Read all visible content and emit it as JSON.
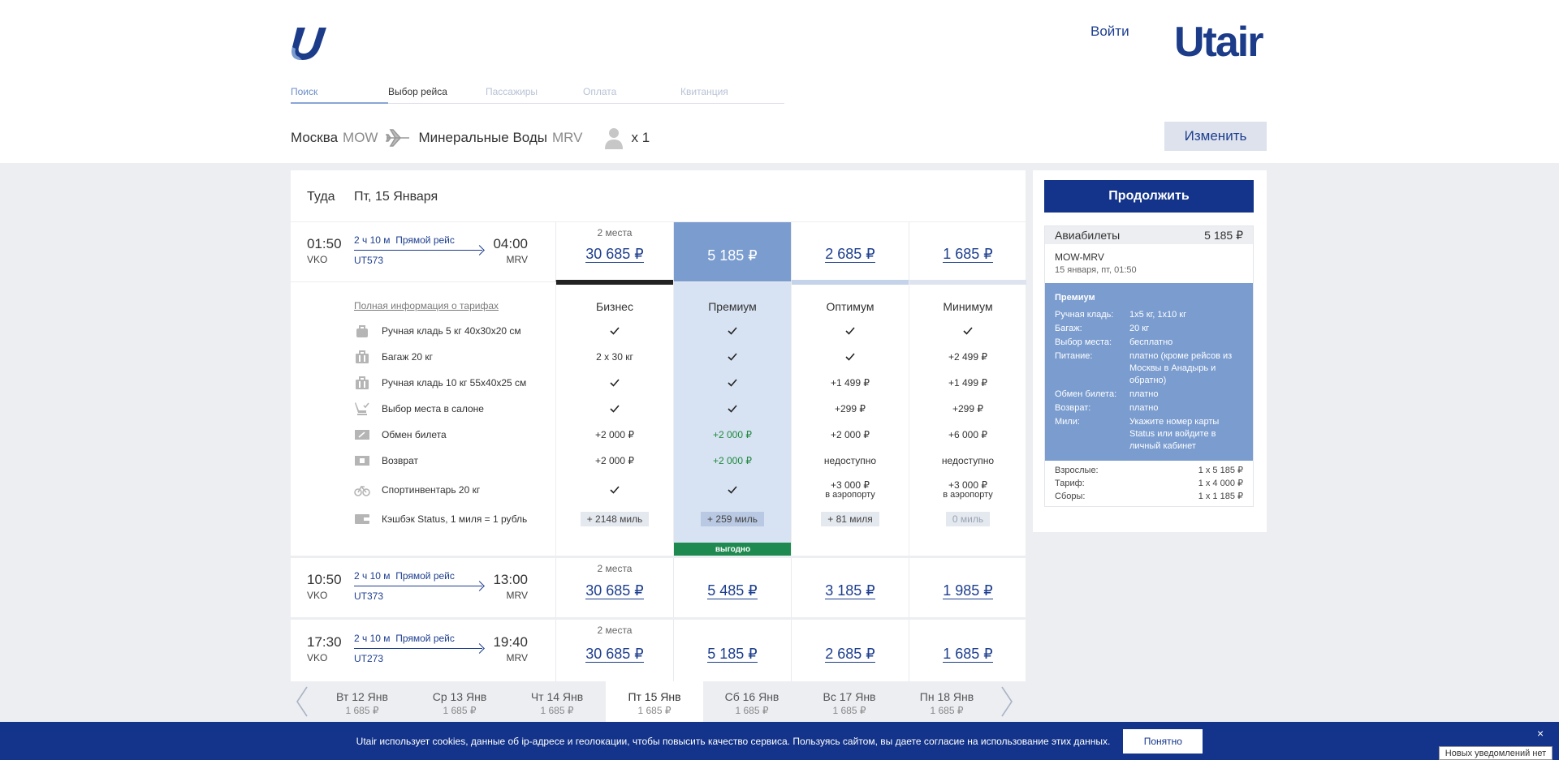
{
  "header": {
    "login": "Войти",
    "brand": "Utair",
    "steps": [
      "Поиск",
      "Выбор рейса",
      "Пассажиры",
      "Оплата",
      "Квитанция"
    ],
    "route": {
      "from_city": "Москва",
      "from_code": "MOW",
      "to_city": "Минеральные Воды",
      "to_code": "MRV",
      "passengers": "x 1"
    },
    "change_btn": "Изменить"
  },
  "direction": {
    "label": "Туда",
    "date": "Пт, 15 Января"
  },
  "flights": [
    {
      "dep_time": "01:50",
      "dep_ap": "VKO",
      "duration": "2 ч 10 м",
      "type": "Прямой рейс",
      "number": "UT573",
      "arr_time": "04:00",
      "arr_ap": "MRV",
      "prices": [
        {
          "seats": "2 места",
          "price": "30 685 ₽"
        },
        {
          "seats": "",
          "price": "5 185 ₽"
        },
        {
          "seats": "",
          "price": "2 685 ₽"
        },
        {
          "seats": "",
          "price": "1 685 ₽"
        }
      ]
    },
    {
      "dep_time": "10:50",
      "dep_ap": "VKO",
      "duration": "2 ч 10 м",
      "type": "Прямой рейс",
      "number": "UT373",
      "arr_time": "13:00",
      "arr_ap": "MRV",
      "prices": [
        {
          "seats": "2 места",
          "price": "30 685 ₽"
        },
        {
          "seats": "",
          "price": "5 485 ₽"
        },
        {
          "seats": "",
          "price": "3 185 ₽"
        },
        {
          "seats": "",
          "price": "1 985 ₽"
        }
      ]
    },
    {
      "dep_time": "17:30",
      "dep_ap": "VKO",
      "duration": "2 ч 10 м",
      "type": "Прямой рейс",
      "number": "UT273",
      "arr_time": "19:40",
      "arr_ap": "MRV",
      "prices": [
        {
          "seats": "2 места",
          "price": "30 685 ₽"
        },
        {
          "seats": "",
          "price": "5 185 ₽"
        },
        {
          "seats": "",
          "price": "2 685 ₽"
        },
        {
          "seats": "",
          "price": "1 685 ₽"
        }
      ]
    }
  ],
  "tariffs": {
    "full_info": "Полная информация о тарифах",
    "features": [
      {
        "icon": "hand-bag-icon",
        "label": "Ручная кладь 5 кг 40x30x20 см"
      },
      {
        "icon": "baggage-icon",
        "label": "Багаж 20 кг"
      },
      {
        "icon": "suitcase-icon",
        "label": "Ручная кладь 10 кг 55x40x25 см"
      },
      {
        "icon": "seat-icon",
        "label": "Выбор места в салоне"
      },
      {
        "icon": "ticket-exchange-icon",
        "label": "Обмен билета"
      },
      {
        "icon": "refund-icon",
        "label": "Возврат"
      },
      {
        "icon": "bicycle-icon",
        "label": "Спортинвентарь 20 кг"
      },
      {
        "icon": "wallet-icon",
        "label": "Кэшбэк Status, 1 миля = 1 рубль"
      }
    ],
    "columns": [
      {
        "name": "Бизнес",
        "values": [
          "✓",
          "2 x 30 кг",
          "✓",
          "✓",
          "+2 000 ₽",
          "+2 000 ₽",
          "✓"
        ],
        "sport_sub": "",
        "miles": "+ 2148 миль"
      },
      {
        "name": "Премиум",
        "values": [
          "✓",
          "✓",
          "✓",
          "✓",
          "+2 000 ₽",
          "+2 000 ₽",
          "✓"
        ],
        "sport_sub": "",
        "miles": "+ 259 миль",
        "badge": "выгодно"
      },
      {
        "name": "Оптимум",
        "values": [
          "✓",
          "✓",
          "+1 499 ₽",
          "+299 ₽",
          "+2 000 ₽",
          "недоступно",
          "+3 000 ₽"
        ],
        "sport_sub": "в аэропорту",
        "miles": "+ 81 миля"
      },
      {
        "name": "Минимум",
        "values": [
          "✓",
          "+2 499 ₽",
          "+1 499 ₽",
          "+299 ₽",
          "+6 000 ₽",
          "недоступно",
          "+3 000 ₽"
        ],
        "sport_sub": "в аэропорту",
        "miles": "0 миль"
      }
    ]
  },
  "dates": [
    {
      "label": "Вт 12 Янв",
      "price": "1 685 ₽"
    },
    {
      "label": "Ср 13 Янв",
      "price": "1 685 ₽"
    },
    {
      "label": "Чт 14 Янв",
      "price": "1 685 ₽"
    },
    {
      "label": "Пт 15 Янв",
      "price": "1 685 ₽"
    },
    {
      "label": "Сб 16 Янв",
      "price": "1 685 ₽"
    },
    {
      "label": "Вс 17 Янв",
      "price": "1 685 ₽"
    },
    {
      "label": "Пн 18 Янв",
      "price": "1 685 ₽"
    }
  ],
  "sidebar": {
    "continue": "Продолжить",
    "tickets_label": "Авиабилеты",
    "tickets_price": "5 185 ₽",
    "route": "MOW-MRV",
    "when": "15 января, пт, 01:50",
    "tariff_title": "Премиум",
    "tariff_rows": [
      {
        "k": "Ручная кладь:",
        "v": "1x5 кг, 1x10 кг"
      },
      {
        "k": "Багаж:",
        "v": "20 кг"
      },
      {
        "k": "Выбор места:",
        "v": "бесплатно"
      },
      {
        "k": "Питание:",
        "v": "платно (кроме рейсов из Москвы в Анадырь и обратно)"
      },
      {
        "k": "Обмен билета:",
        "v": "платно"
      },
      {
        "k": "Возврат:",
        "v": "платно"
      },
      {
        "k": "Мили:",
        "v": "Укажите номер карты Status или войдите в личный кабинет"
      }
    ],
    "costs": [
      {
        "k": "Взрослые:",
        "v": "1 x 5 185 ₽"
      },
      {
        "k": "Тариф:",
        "v": "1 x 4 000 ₽"
      },
      {
        "k": "Сборы:",
        "v": "1 x 1 185 ₽"
      }
    ]
  },
  "cookie": {
    "text": "Utair использует cookies, данные об ip-адресе и геолокации, чтобы повысить качество сервиса. Пользуясь сайтом, вы даете согласие на использование этих данных.",
    "ok": "Понятно",
    "close": "×",
    "notif": "Новых уведомлений нет"
  },
  "colors": {
    "brand": "#13348a",
    "selected": "#7a9ccf",
    "green": "#1f8a50"
  }
}
